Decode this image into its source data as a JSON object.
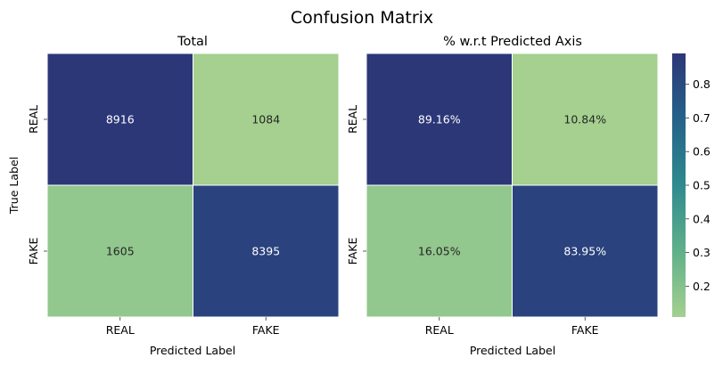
{
  "title": "Confusion Matrix",
  "colors": {
    "cmap_low": "#a5d08f",
    "cmap_mid_low": "#5fb08a",
    "cmap_mid": "#2f8a8e",
    "cmap_mid_high": "#25628a",
    "cmap_high": "#2c3778",
    "text_dark": "#262626",
    "text_light": "#ffffff",
    "cell_border": "#ffffff"
  },
  "chart_data": [
    {
      "type": "heatmap",
      "title": "Total",
      "xlabel": "Predicted Label",
      "ylabel": "True Label",
      "x_categories": [
        "REAL",
        "FAKE"
      ],
      "y_categories": [
        "REAL",
        "FAKE"
      ],
      "values": [
        [
          8916,
          1084
        ],
        [
          1605,
          8395
        ]
      ],
      "annotations": [
        [
          "8916",
          "1084"
        ],
        [
          "1605",
          "8395"
        ]
      ],
      "vmin": 1084,
      "vmax": 8916
    },
    {
      "type": "heatmap",
      "title": "% w.r.t Predicted Axis",
      "xlabel": "Predicted Label",
      "ylabel": "",
      "x_categories": [
        "REAL",
        "FAKE"
      ],
      "y_categories": [
        "REAL",
        "FAKE"
      ],
      "values": [
        [
          0.8916,
          0.1084
        ],
        [
          0.1605,
          0.8395
        ]
      ],
      "annotations": [
        [
          "89.16%",
          "10.84%"
        ],
        [
          "16.05%",
          "83.95%"
        ]
      ],
      "vmin": 0.1084,
      "vmax": 0.8916,
      "colorbar": {
        "ticks": [
          0.2,
          0.3,
          0.4,
          0.5,
          0.6,
          0.7,
          0.8
        ],
        "tick_labels": [
          "0.2",
          "0.3",
          "0.4",
          "0.5",
          "0.6",
          "0.7",
          "0.8"
        ]
      }
    }
  ]
}
